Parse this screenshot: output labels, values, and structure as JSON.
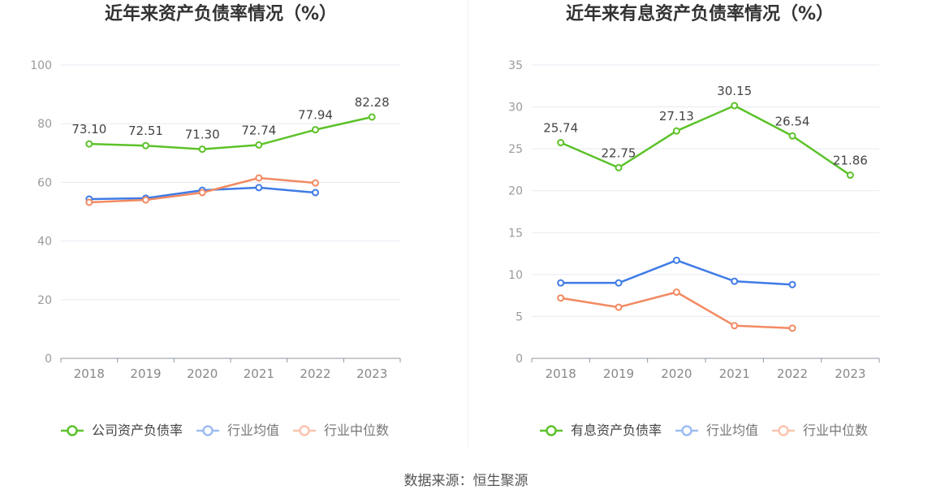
{
  "chart_data": [
    {
      "type": "line",
      "title": "近年来资产负债率情况（%）",
      "categories": [
        "2018",
        "2019",
        "2020",
        "2021",
        "2022",
        "2023"
      ],
      "ylim": [
        0,
        100
      ],
      "yticks": [
        0,
        20,
        40,
        60,
        80,
        100
      ],
      "grid": true,
      "legend_position": "bottom",
      "series": [
        {
          "name": "公司资产负债率",
          "color": "#5cc22a",
          "data_labels": true,
          "values": [
            73.1,
            72.51,
            71.3,
            72.74,
            77.94,
            82.28
          ]
        },
        {
          "name": "行业均值",
          "color": "#3f7be6",
          "data_labels": false,
          "values": [
            54.3,
            54.6,
            57.3,
            58.2,
            56.5,
            null
          ]
        },
        {
          "name": "行业中位数",
          "color": "#f28a62",
          "data_labels": false,
          "values": [
            53.2,
            54.0,
            56.5,
            61.5,
            59.8,
            null
          ]
        }
      ]
    },
    {
      "type": "line",
      "title": "近年来有息资产负债率情况（%）",
      "categories": [
        "2018",
        "2019",
        "2020",
        "2021",
        "2022",
        "2023"
      ],
      "ylim": [
        0,
        35
      ],
      "yticks": [
        0,
        5,
        10,
        15,
        20,
        25,
        30,
        35
      ],
      "grid": true,
      "legend_position": "bottom",
      "series": [
        {
          "name": "有息资产负债率",
          "color": "#5cc22a",
          "data_labels": true,
          "values": [
            25.74,
            22.75,
            27.13,
            30.15,
            26.54,
            21.86
          ]
        },
        {
          "name": "行业均值",
          "color": "#3f7be6",
          "data_labels": false,
          "values": [
            9.0,
            9.0,
            11.7,
            9.2,
            8.8,
            null
          ]
        },
        {
          "name": "行业中位数",
          "color": "#f28a62",
          "data_labels": false,
          "values": [
            7.2,
            6.1,
            7.9,
            3.9,
            3.6,
            null
          ]
        }
      ]
    }
  ],
  "source": "数据来源：恒生聚源"
}
